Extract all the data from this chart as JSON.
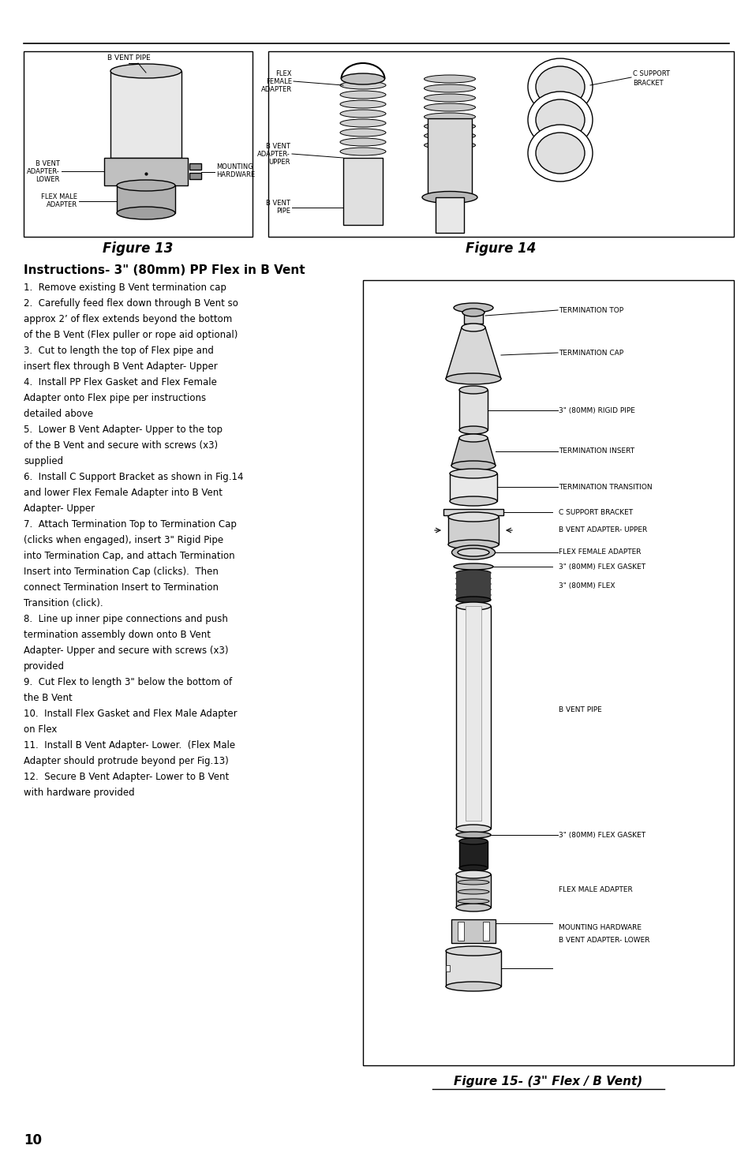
{
  "page_bg": "#ffffff",
  "page_number": "10",
  "fig13_caption": "Figure 13",
  "fig14_caption": "Figure 14",
  "fig15_caption": "Figure 15- (3\" Flex / B Vent)",
  "instructions_title": "Instructions- 3\" (80mm) PP Flex in B Vent",
  "instructions_lines": [
    "1.  Remove existing B Vent termination cap",
    "2.  Carefully feed flex down through B Vent so",
    "approx 2’ of flex extends beyond the bottom",
    "of the B Vent (Flex puller or rope aid optional)",
    "3.  Cut to length the top of Flex pipe and",
    "insert flex through B Vent Adapter- Upper",
    "4.  Install PP Flex Gasket and Flex Female",
    "Adapter onto Flex pipe per instructions",
    "detailed above",
    "5.  Lower B Vent Adapter- Upper to the top",
    "of the B Vent and secure with screws (x3)",
    "supplied",
    "6.  Install C Support Bracket as shown in Fig.14",
    "and lower Flex Female Adapter into B Vent",
    "Adapter- Upper",
    "7.  Attach Termination Top to Termination Cap",
    "(clicks when engaged), insert 3\" Rigid Pipe",
    "into Termination Cap, and attach Termination",
    "Insert into Termination Cap (clicks).  Then",
    "connect Termination Insert to Termination",
    "Transition (click).",
    "8.  Line up inner pipe connections and push",
    "termination assembly down onto B Vent",
    "Adapter- Upper and secure with screws (x3)",
    "provided",
    "9.  Cut Flex to length 3\" below the bottom of",
    "the B Vent",
    "10.  Install Flex Gasket and Flex Male Adapter",
    "on Flex",
    "11.  Install B Vent Adapter- Lower.  (Flex Male",
    "Adapter should protrude beyond per Fig.13)",
    "12.  Secure B Vent Adapter- Lower to B Vent",
    "with hardware provided"
  ]
}
